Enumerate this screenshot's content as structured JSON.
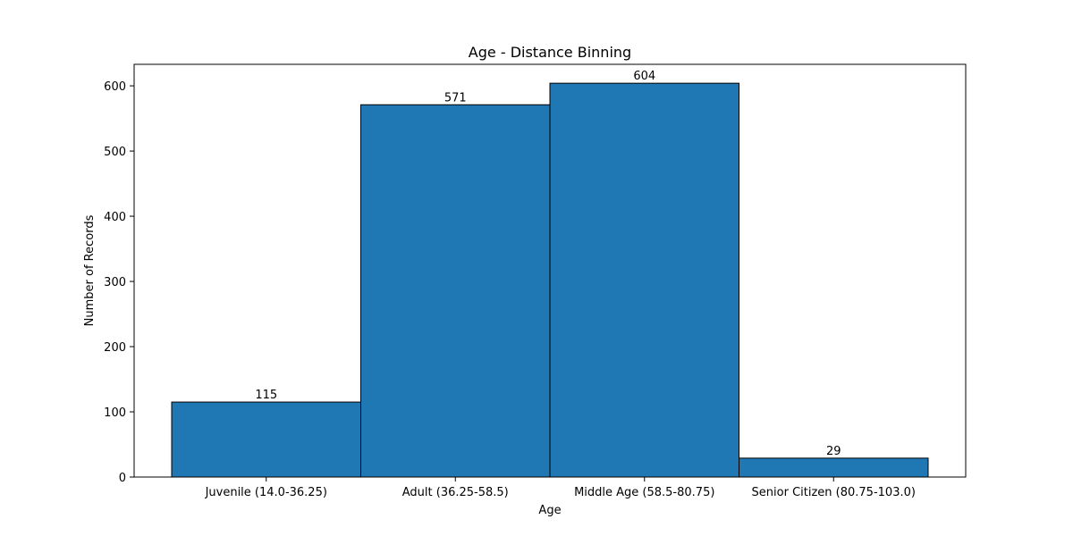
{
  "chart_data": {
    "type": "bar",
    "title": "Age - Distance Binning",
    "xlabel": "Age",
    "ylabel": "Number of Records",
    "categories": [
      "Juvenile (14.0-36.25)",
      "Adult (36.25-58.5)",
      "Middle Age (58.5-80.75)",
      "Senior Citizen (80.75-103.0)"
    ],
    "values": [
      115,
      571,
      604,
      29
    ],
    "data_labels": [
      "115",
      "571",
      "604",
      "29"
    ],
    "ylim": [
      0,
      633
    ],
    "yticks": [
      0,
      100,
      200,
      300,
      400,
      500,
      600
    ],
    "grid": false,
    "legend": "none",
    "bar_color": "#1f77b4",
    "bar_edge_color": "#000000"
  }
}
